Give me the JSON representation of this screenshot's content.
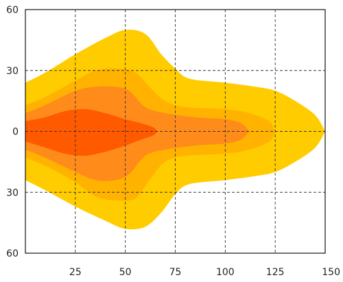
{
  "chart_data": {
    "type": "area",
    "title": "",
    "xlabel": "",
    "ylabel": "",
    "xlim": [
      0,
      150
    ],
    "ylim": [
      -60,
      60
    ],
    "x_ticks": [
      {
        "value": 25,
        "label": "25"
      },
      {
        "value": 50,
        "label": "50"
      },
      {
        "value": 75,
        "label": "75"
      },
      {
        "value": 100,
        "label": "100"
      },
      {
        "value": 125,
        "label": "125"
      },
      {
        "value": 150,
        "label": "150"
      }
    ],
    "y_ticks": [
      {
        "value": 60,
        "label": "60"
      },
      {
        "value": 30,
        "label": "30"
      },
      {
        "value": 0,
        "label": "0"
      },
      {
        "value": -30,
        "label": "30"
      },
      {
        "value": -60,
        "label": "60"
      }
    ],
    "grid": true,
    "grid_style": "dashed",
    "legend": "none",
    "series": [
      {
        "color": "#FFCC00",
        "upper": [
          [
            0,
            24
          ],
          [
            10,
            29
          ],
          [
            25,
            38
          ],
          [
            40,
            46
          ],
          [
            50,
            50
          ],
          [
            60,
            48
          ],
          [
            68,
            38
          ],
          [
            75,
            31
          ],
          [
            82,
            26
          ],
          [
            100,
            24
          ],
          [
            115,
            22
          ],
          [
            125,
            20
          ],
          [
            135,
            15
          ],
          [
            145,
            8
          ],
          [
            150,
            0
          ]
        ],
        "lower": [
          [
            0,
            -24
          ],
          [
            10,
            -29
          ],
          [
            25,
            -37
          ],
          [
            40,
            -44
          ],
          [
            50,
            -48
          ],
          [
            60,
            -47
          ],
          [
            68,
            -40
          ],
          [
            75,
            -31
          ],
          [
            82,
            -26
          ],
          [
            100,
            -24
          ],
          [
            115,
            -22
          ],
          [
            125,
            -20
          ],
          [
            135,
            -15
          ],
          [
            145,
            -8
          ],
          [
            150,
            0
          ]
        ]
      },
      {
        "color": "#FFB300",
        "upper": [
          [
            0,
            13
          ],
          [
            10,
            17
          ],
          [
            25,
            25
          ],
          [
            35,
            30
          ],
          [
            45,
            31
          ],
          [
            55,
            29
          ],
          [
            62,
            22
          ],
          [
            70,
            15
          ],
          [
            80,
            12
          ],
          [
            100,
            11
          ],
          [
            112,
            9
          ],
          [
            122,
            5
          ],
          [
            125,
            0
          ]
        ],
        "lower": [
          [
            0,
            -13
          ],
          [
            10,
            -17
          ],
          [
            25,
            -25
          ],
          [
            35,
            -32
          ],
          [
            45,
            -34
          ],
          [
            55,
            -33
          ],
          [
            62,
            -24
          ],
          [
            70,
            -15
          ],
          [
            80,
            -12
          ],
          [
            100,
            -11
          ],
          [
            112,
            -9
          ],
          [
            122,
            -5
          ],
          [
            125,
            0
          ]
        ]
      },
      {
        "color": "#FF8C1A",
        "upper": [
          [
            0,
            9
          ],
          [
            10,
            13
          ],
          [
            25,
            20
          ],
          [
            35,
            22
          ],
          [
            45,
            22
          ],
          [
            52,
            20
          ],
          [
            60,
            12
          ],
          [
            70,
            9
          ],
          [
            85,
            7
          ],
          [
            100,
            6
          ],
          [
            108,
            4
          ],
          [
            112,
            0
          ]
        ],
        "lower": [
          [
            0,
            -9
          ],
          [
            10,
            -13
          ],
          [
            25,
            -20
          ],
          [
            35,
            -24
          ],
          [
            45,
            -24
          ],
          [
            52,
            -21
          ],
          [
            60,
            -12
          ],
          [
            70,
            -9
          ],
          [
            85,
            -7
          ],
          [
            100,
            -6
          ],
          [
            108,
            -4
          ],
          [
            112,
            0
          ]
        ]
      },
      {
        "color": "#FF5A00",
        "upper": [
          [
            0,
            5
          ],
          [
            10,
            7
          ],
          [
            20,
            10
          ],
          [
            30,
            11
          ],
          [
            40,
            9
          ],
          [
            50,
            6
          ],
          [
            58,
            4
          ],
          [
            64,
            2
          ],
          [
            66,
            0
          ]
        ],
        "lower": [
          [
            0,
            -5
          ],
          [
            10,
            -8
          ],
          [
            20,
            -11
          ],
          [
            30,
            -12
          ],
          [
            40,
            -10
          ],
          [
            50,
            -7
          ],
          [
            58,
            -4
          ],
          [
            64,
            -2
          ],
          [
            66,
            0
          ]
        ]
      }
    ]
  }
}
